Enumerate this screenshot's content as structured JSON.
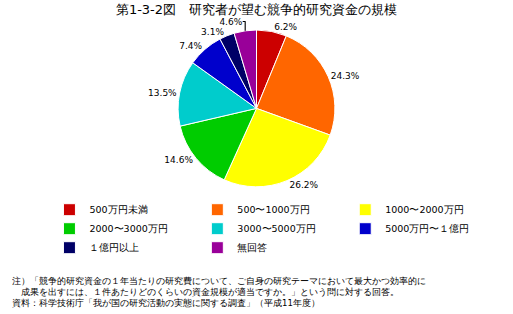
{
  "chart_data": {
    "type": "pie",
    "title": "第1-3-2図　研究者が望む競争的研究資金の規模",
    "categories": [
      "500万円未満",
      "500〜1000万円",
      "1000〜2000万円",
      "2000〜3000万円",
      "3000〜5000万円",
      "5000万円〜１億円",
      "１億円以上",
      "無回答"
    ],
    "values": [
      6.2,
      24.3,
      26.2,
      14.6,
      13.5,
      7.4,
      3.1,
      4.6
    ],
    "value_labels": [
      "6.2%",
      "24.3%",
      "26.2%",
      "14.6%",
      "13.5%",
      "7.4%",
      "3.1%",
      "4.6%"
    ],
    "colors": [
      "#cc0000",
      "#ff6600",
      "#ffff00",
      "#00cc00",
      "#00cccc",
      "#0000cc",
      "#000066",
      "#990099"
    ],
    "data_labels": true,
    "legend": "bottom",
    "annotations": [
      "注）「競争的研究資金の１年当たりの研究費について、ご自身の研究テーマにおいて最大かつ効率的に",
      "　成果を出すには、１件あたりどのくらいの資金規模が適当ですか。」という問に対する回答。",
      "資料：科学技術庁「我が国の研究活動の実態に関する調査」（平成11年度）"
    ]
  }
}
